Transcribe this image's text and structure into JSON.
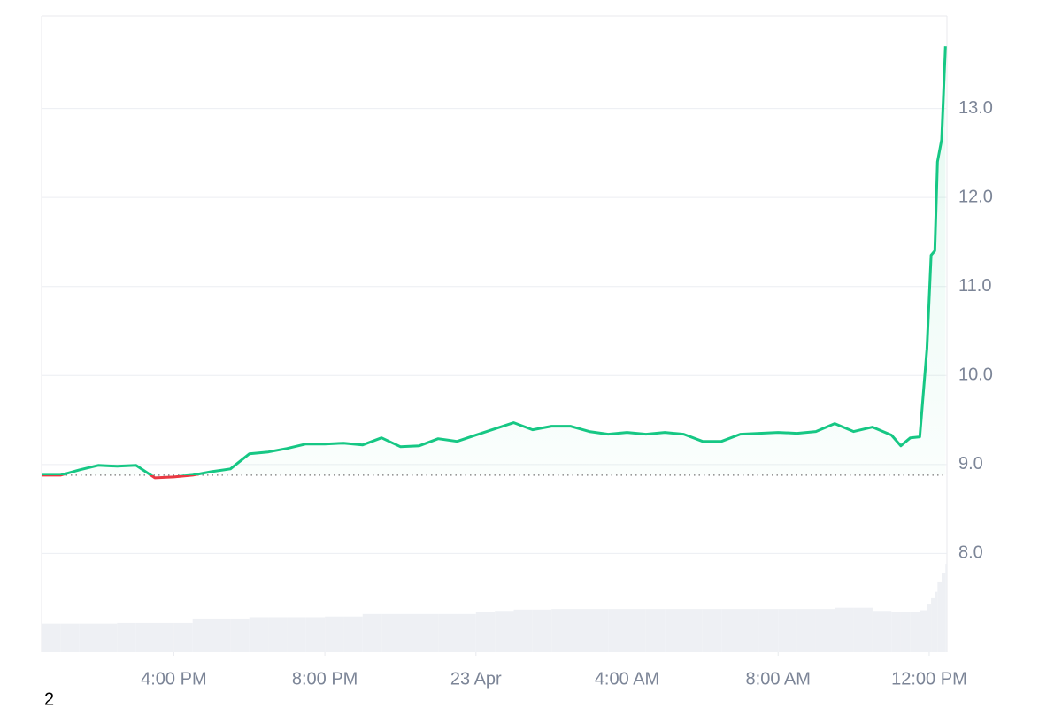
{
  "chart_data": {
    "type": "line",
    "x": [
      0.5,
      1.0,
      1.5,
      2.0,
      2.5,
      3.0,
      3.5,
      4.0,
      4.5,
      5.0,
      5.5,
      6.0,
      6.5,
      7.0,
      7.5,
      8.0,
      8.5,
      9.0,
      9.5,
      10.0,
      10.5,
      11.0,
      11.5,
      12.0,
      12.5,
      13.0,
      13.5,
      14.0,
      14.5,
      15.0,
      15.5,
      16.0,
      16.5,
      17.0,
      17.5,
      18.0,
      18.5,
      19.0,
      19.5,
      20.0,
      20.5,
      21.0,
      21.5,
      22.0,
      22.5,
      23.0,
      23.25,
      23.5,
      23.75,
      23.94,
      24.05,
      24.15,
      24.22,
      24.33,
      24.43
    ],
    "series": [
      {
        "color": "#16c784",
        "down_color": "#ea3943",
        "values": [
          8.88,
          8.88,
          8.94,
          8.99,
          8.98,
          8.99,
          8.85,
          8.86,
          8.88,
          8.92,
          8.95,
          9.12,
          9.14,
          9.18,
          9.23,
          9.23,
          9.24,
          9.22,
          9.3,
          9.2,
          9.21,
          9.29,
          9.26,
          9.33,
          9.4,
          9.47,
          9.39,
          9.43,
          9.43,
          9.37,
          9.34,
          9.36,
          9.34,
          9.36,
          9.34,
          9.26,
          9.26,
          9.34,
          9.35,
          9.36,
          9.35,
          9.37,
          9.46,
          9.37,
          9.42,
          9.33,
          9.21,
          9.3,
          9.31,
          10.3,
          11.35,
          11.4,
          12.4,
          12.65,
          13.7
        ]
      },
      {
        "type": "bar",
        "axis": "y2",
        "color": "#eef0f4",
        "values": [
          4.5,
          4.5,
          4.5,
          4.5,
          4.6,
          4.6,
          4.6,
          4.6,
          5.3,
          5.3,
          5.3,
          5.5,
          5.5,
          5.5,
          5.5,
          5.6,
          5.6,
          6.0,
          6.0,
          6.0,
          6.0,
          6.0,
          6.0,
          6.4,
          6.5,
          6.7,
          6.7,
          6.8,
          6.8,
          6.8,
          6.8,
          6.8,
          6.8,
          6.8,
          6.8,
          6.8,
          6.8,
          6.8,
          6.8,
          6.8,
          6.8,
          6.8,
          7.0,
          7.0,
          6.5,
          6.4,
          6.4,
          6.4,
          6.6,
          7.5,
          8.5,
          9.5,
          11,
          12.5,
          13.9
        ]
      }
    ],
    "baseline": 8.88,
    "xlim": [
      0.5,
      24.47
    ],
    "xticks": [
      {
        "value": 4,
        "label": "4:00 PM"
      },
      {
        "value": 8,
        "label": "8:00 PM"
      },
      {
        "value": 12,
        "label": "23 Apr"
      },
      {
        "value": 16,
        "label": "4:00 AM"
      },
      {
        "value": 20,
        "label": "8:00 AM"
      },
      {
        "value": 24,
        "label": "12:00 PM"
      }
    ],
    "ylim": [
      6.89,
      14.04
    ],
    "yticks": [
      {
        "value": 8,
        "label": "8.0"
      },
      {
        "value": 9,
        "label": "9.0"
      },
      {
        "value": 10,
        "label": "10.0"
      },
      {
        "value": 11,
        "label": "11.0"
      },
      {
        "value": 12,
        "label": "12.0"
      },
      {
        "value": 13,
        "label": "13.0"
      }
    ],
    "y2lim": [
      0,
      100
    ],
    "grid": true,
    "annotation": "2"
  }
}
